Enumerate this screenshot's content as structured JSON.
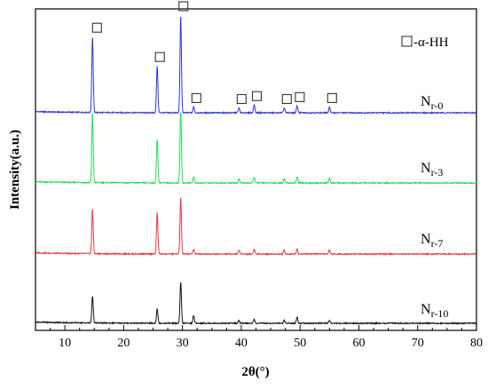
{
  "chart_data": {
    "type": "line",
    "xlabel": "2θ(°)",
    "ylabel": "Intensity(a.u.)",
    "xlim": [
      5,
      80
    ],
    "xticks": [
      10,
      20,
      30,
      40,
      50,
      60,
      70,
      80
    ],
    "grid": false,
    "legend": {
      "marker": "open-square",
      "label": "-α-HH",
      "position": "top-right"
    },
    "peaks_2theta": [
      14.7,
      25.7,
      29.7,
      31.9,
      39.6,
      42.2,
      47.3,
      49.5,
      55.0
    ],
    "marker_peaks_2theta": [
      14.7,
      25.7,
      29.7,
      31.9,
      39.6,
      42.2,
      47.3,
      49.5,
      55.0
    ],
    "series": [
      {
        "label_main": "N",
        "label_sub": "r-0",
        "color": "#3333dd",
        "baseline": 0.1,
        "peak_heights": [
          0.78,
          0.48,
          1.0,
          0.06,
          0.05,
          0.08,
          0.05,
          0.07,
          0.06
        ]
      },
      {
        "label_main": "N",
        "label_sub": "r-3",
        "color": "#22dd55",
        "baseline": 0.1,
        "peak_heights": [
          0.72,
          0.45,
          0.74,
          0.06,
          0.04,
          0.06,
          0.04,
          0.06,
          0.05
        ]
      },
      {
        "label_main": "N",
        "label_sub": "r-7",
        "color": "#ee3344",
        "baseline": 0.1,
        "peak_heights": [
          0.46,
          0.42,
          0.58,
          0.05,
          0.04,
          0.05,
          0.04,
          0.05,
          0.04
        ]
      },
      {
        "label_main": "N",
        "label_sub": "r-10",
        "color": "#111111",
        "baseline": 0.1,
        "peak_heights": [
          0.28,
          0.15,
          0.42,
          0.08,
          0.03,
          0.04,
          0.03,
          0.06,
          0.03
        ]
      }
    ]
  }
}
